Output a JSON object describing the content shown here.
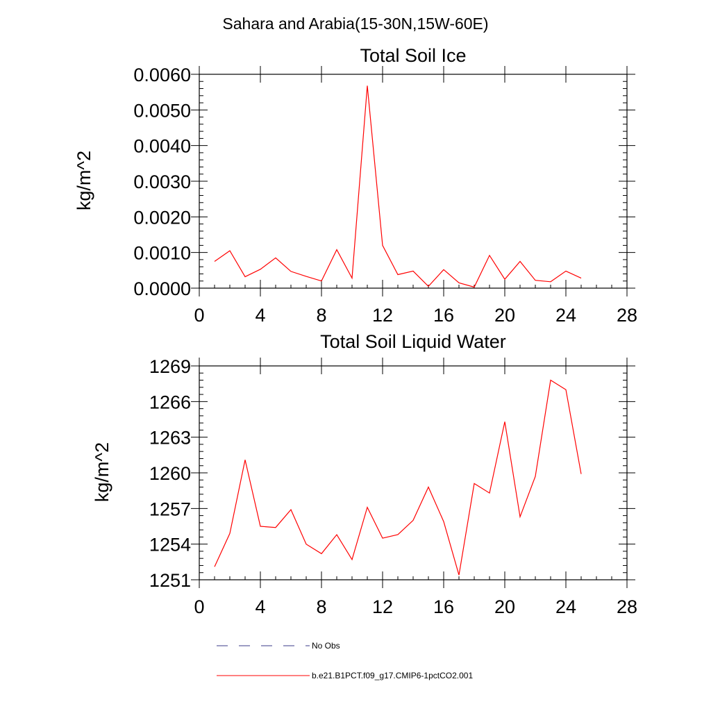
{
  "figure": {
    "title": "Sahara and Arabia(15-30N,15W-60E)"
  },
  "chart_data": [
    {
      "type": "line",
      "title": "Total Soil Ice",
      "ylabel": "kg/m^2",
      "xlabel": "",
      "xlim": [
        0,
        28
      ],
      "ylim": [
        0,
        0.006
      ],
      "xticks": [
        0,
        4,
        8,
        12,
        16,
        20,
        24,
        28
      ],
      "xtick_labels": [
        "0",
        "4",
        "8",
        "12",
        "16",
        "20",
        "24",
        "28"
      ],
      "yticks": [
        0,
        0.001,
        0.002,
        0.003,
        0.004,
        0.005,
        0.006
      ],
      "ytick_labels": [
        "0.0000",
        "0.0010",
        "0.0020",
        "0.0030",
        "0.0040",
        "0.0050",
        "0.0060"
      ],
      "grid": false,
      "series": [
        {
          "color": "#ff0000",
          "x": [
            1,
            2,
            3,
            4,
            5,
            6,
            7,
            8,
            9,
            10,
            11,
            12,
            13,
            14,
            15,
            16,
            17,
            18,
            19,
            20,
            21,
            22,
            23,
            24,
            25
          ],
          "y": [
            0.00075,
            0.00105,
            0.00032,
            0.00053,
            0.00085,
            0.00047,
            0.00033,
            0.0002,
            0.00108,
            0.00028,
            0.00568,
            0.0012,
            0.00038,
            0.00048,
            5e-05,
            0.00052,
            0.00015,
            3e-05,
            0.00092,
            0.00025,
            0.00075,
            0.00022,
            0.00018,
            0.00048,
            0.00028
          ]
        }
      ]
    },
    {
      "type": "line",
      "title": "Total Soil Liquid Water",
      "ylabel": "kg/m^2",
      "xlabel": "",
      "xlim": [
        0,
        28
      ],
      "ylim": [
        1251,
        1269
      ],
      "xticks": [
        0,
        4,
        8,
        12,
        16,
        20,
        24,
        28
      ],
      "xtick_labels": [
        "0",
        "4",
        "8",
        "12",
        "16",
        "20",
        "24",
        "28"
      ],
      "yticks": [
        1251,
        1254,
        1257,
        1260,
        1263,
        1266,
        1269
      ],
      "ytick_labels": [
        "1251",
        "1254",
        "1257",
        "1260",
        "1263",
        "1266",
        "1269"
      ],
      "grid": false,
      "series": [
        {
          "color": "#ff0000",
          "x": [
            1,
            2,
            3,
            4,
            5,
            6,
            7,
            8,
            9,
            10,
            11,
            12,
            13,
            14,
            15,
            16,
            17,
            18,
            19,
            20,
            21,
            22,
            23,
            24,
            25
          ],
          "y": [
            1252.1,
            1254.9,
            1261.1,
            1255.5,
            1255.4,
            1256.9,
            1254.0,
            1253.2,
            1254.8,
            1252.7,
            1257.1,
            1254.5,
            1254.8,
            1256.0,
            1258.8,
            1255.9,
            1251.4,
            1259.1,
            1258.3,
            1264.3,
            1256.3,
            1259.7,
            1267.8,
            1267.0,
            1259.9
          ]
        }
      ]
    }
  ],
  "legend": {
    "placement": "bottom-left",
    "items": [
      {
        "label": "No Obs",
        "color": "#3a3a8a",
        "style": "dashed"
      },
      {
        "label": "b.e21.B1PCT.f09_g17.CMIP6-1pctCO2.001",
        "color": "#ff0000",
        "style": "solid"
      }
    ]
  }
}
